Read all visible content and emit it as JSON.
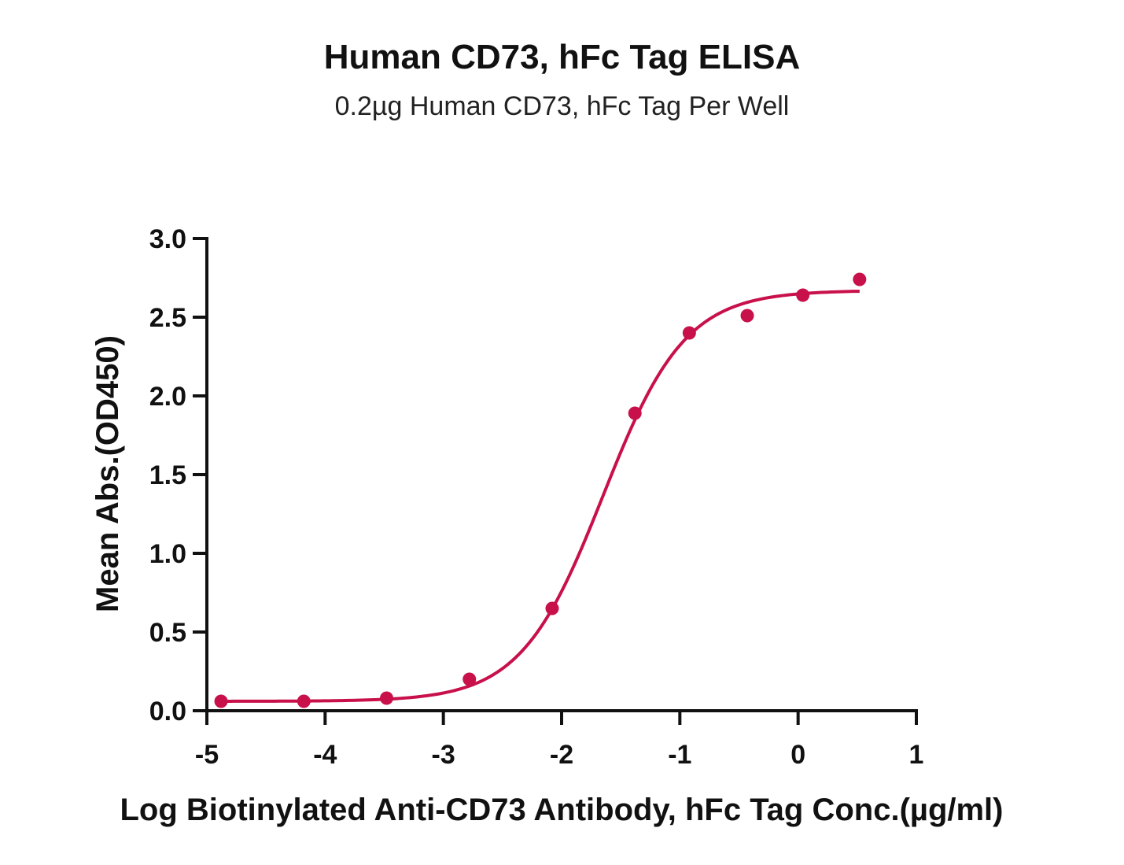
{
  "chart_data": {
    "type": "scatter",
    "title": "Human CD73, hFc Tag ELISA",
    "subtitle": "0.2µg Human CD73, hFc Tag Per Well",
    "xlabel": "Log Biotinylated Anti-CD73 Antibody, hFc Tag Conc.(µg/ml)",
    "ylabel": "Mean Abs.(OD450)",
    "xlim": [
      -5,
      1
    ],
    "ylim": [
      0,
      3
    ],
    "x_ticks": [
      -5,
      -4,
      -3,
      -2,
      -1,
      0,
      1
    ],
    "x_tick_labels": [
      "-5",
      "-4",
      "-3",
      "-2",
      "-1",
      "0",
      "1"
    ],
    "y_ticks": [
      0,
      0.5,
      1,
      1.5,
      2,
      2.5,
      3
    ],
    "y_tick_labels": [
      "0.0",
      "0.5",
      "1.0",
      "1.5",
      "2.0",
      "2.5",
      "3.0"
    ],
    "grid": false,
    "color": "#c8104a",
    "series": [
      {
        "points": [
          {
            "x": -4.88,
            "y": 0.06
          },
          {
            "x": -4.18,
            "y": 0.06
          },
          {
            "x": -3.48,
            "y": 0.08
          },
          {
            "x": -2.78,
            "y": 0.2
          },
          {
            "x": -2.08,
            "y": 0.65
          },
          {
            "x": -1.38,
            "y": 1.89
          },
          {
            "x": -0.92,
            "y": 2.4
          },
          {
            "x": -0.43,
            "y": 2.51
          },
          {
            "x": 0.04,
            "y": 2.64
          },
          {
            "x": 0.52,
            "y": 2.74
          }
        ],
        "fit": {
          "type": "4PL",
          "bottom": 0.06,
          "top": 2.67,
          "logEC50": -1.65,
          "hill": 1.25,
          "x_range": [
            -4.88,
            0.52
          ]
        }
      }
    ]
  }
}
